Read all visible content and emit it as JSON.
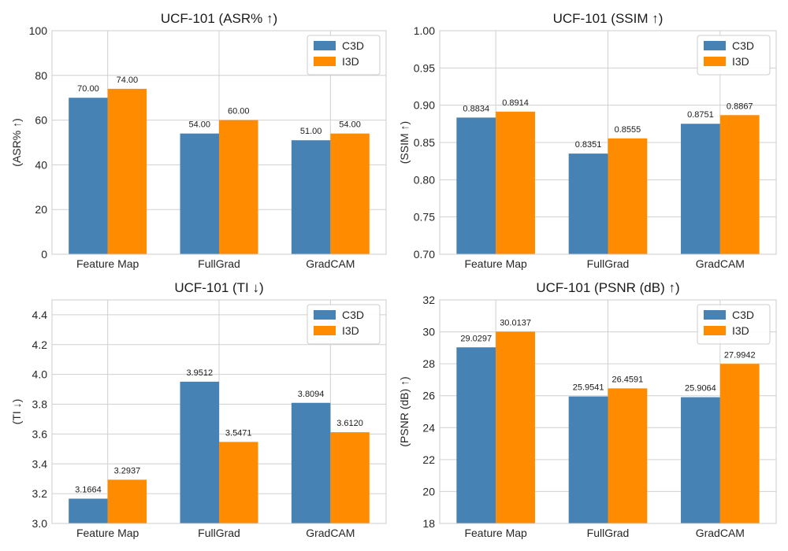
{
  "colors": {
    "c3d": "#4682b4",
    "i3d": "#ff8c00",
    "grid": "#d0d0d0",
    "frame": "#cccccc"
  },
  "legend_position": "top-right",
  "grid": true,
  "chart_data": [
    {
      "type": "bar",
      "title": "UCF-101  (ASR% ↑)",
      "ylabel": "(ASR% ↑)",
      "categories": [
        "Feature Map",
        "FullGrad",
        "GradCAM"
      ],
      "ylim": [
        0,
        100
      ],
      "yticks": [
        0,
        20,
        40,
        60,
        80,
        100
      ],
      "ytick_labels": [
        "0",
        "20",
        "40",
        "60",
        "80",
        "100"
      ],
      "series": [
        {
          "name": "C3D",
          "values": [
            70.0,
            54.0,
            51.0
          ],
          "labels": [
            "70.00",
            "54.00",
            "51.00"
          ]
        },
        {
          "name": "I3D",
          "values": [
            74.0,
            60.0,
            54.0
          ],
          "labels": [
            "74.00",
            "60.00",
            "54.00"
          ]
        }
      ]
    },
    {
      "type": "bar",
      "title": "UCF-101  (SSIM ↑)",
      "ylabel": "(SSIM ↑)",
      "categories": [
        "Feature Map",
        "FullGrad",
        "GradCAM"
      ],
      "ylim": [
        0.7,
        1.0
      ],
      "yticks": [
        0.7,
        0.75,
        0.8,
        0.85,
        0.9,
        0.95,
        1.0
      ],
      "ytick_labels": [
        "0.70",
        "0.75",
        "0.80",
        "0.85",
        "0.90",
        "0.95",
        "1.00"
      ],
      "series": [
        {
          "name": "C3D",
          "values": [
            0.8834,
            0.8351,
            0.8751
          ],
          "labels": [
            "0.8834",
            "0.8351",
            "0.8751"
          ]
        },
        {
          "name": "I3D",
          "values": [
            0.8914,
            0.8555,
            0.8867
          ],
          "labels": [
            "0.8914",
            "0.8555",
            "0.8867"
          ]
        }
      ]
    },
    {
      "type": "bar",
      "title": "UCF-101  (TI ↓)",
      "ylabel": "(TI ↓)",
      "categories": [
        "Feature Map",
        "FullGrad",
        "GradCAM"
      ],
      "ylim": [
        3.0,
        4.5
      ],
      "yticks": [
        3.0,
        3.2,
        3.4,
        3.6,
        3.8,
        4.0,
        4.2,
        4.4
      ],
      "ytick_labels": [
        "3.0",
        "3.2",
        "3.4",
        "3.6",
        "3.8",
        "4.0",
        "4.2",
        "4.4"
      ],
      "series": [
        {
          "name": "C3D",
          "values": [
            3.1664,
            3.9512,
            3.8094
          ],
          "labels": [
            "3.1664",
            "3.9512",
            "3.8094"
          ]
        },
        {
          "name": "I3D",
          "values": [
            3.2937,
            3.5471,
            3.612
          ],
          "labels": [
            "3.2937",
            "3.5471",
            "3.6120"
          ]
        }
      ]
    },
    {
      "type": "bar",
      "title": "UCF-101  (PSNR (dB) ↑)",
      "ylabel": "(PSNR (dB) ↑)",
      "categories": [
        "Feature Map",
        "FullGrad",
        "GradCAM"
      ],
      "ylim": [
        18,
        32
      ],
      "yticks": [
        18,
        20,
        22,
        24,
        26,
        28,
        30,
        32
      ],
      "ytick_labels": [
        "18",
        "20",
        "22",
        "24",
        "26",
        "28",
        "30",
        "32"
      ],
      "series": [
        {
          "name": "C3D",
          "values": [
            29.0297,
            25.9541,
            25.9064
          ],
          "labels": [
            "29.0297",
            "25.9541",
            "25.9064"
          ]
        },
        {
          "name": "I3D",
          "values": [
            30.0137,
            26.4591,
            27.9942
          ],
          "labels": [
            "30.0137",
            "26.4591",
            "27.9942"
          ]
        }
      ]
    }
  ]
}
